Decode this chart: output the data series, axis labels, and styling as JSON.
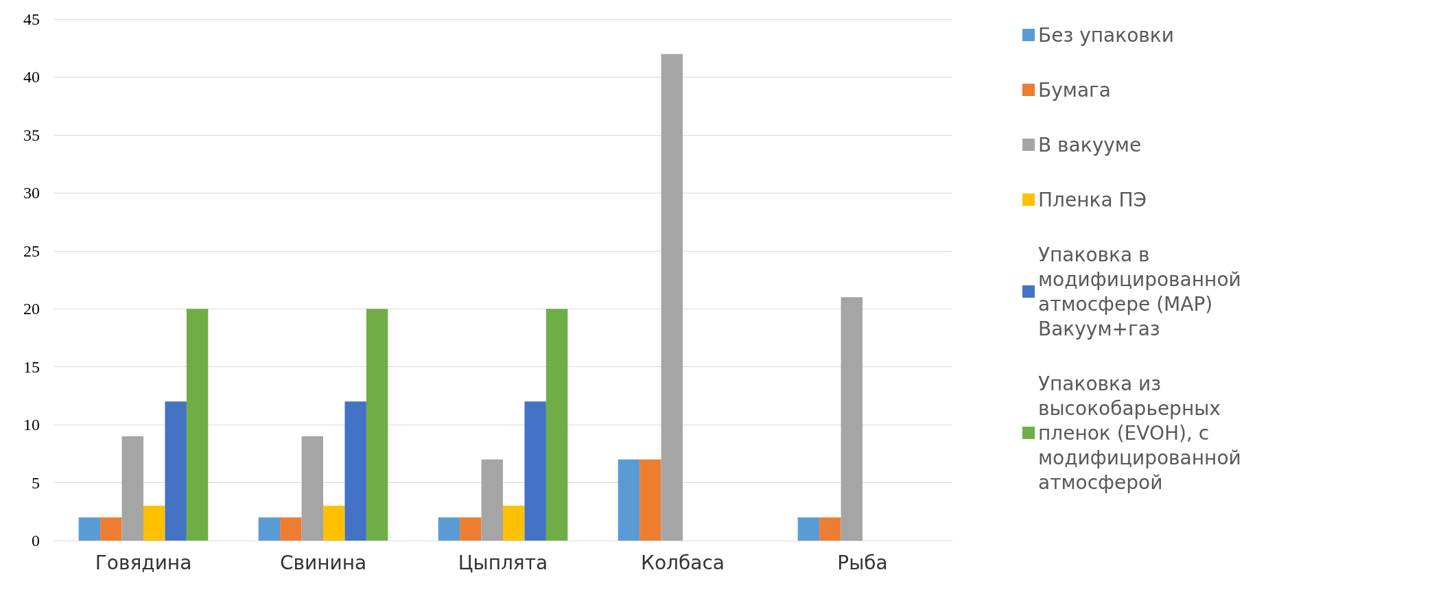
{
  "chart_data": {
    "type": "bar",
    "categories": [
      "Говядина",
      "Свинина",
      "Цыплята",
      "Колбаса",
      "Рыба"
    ],
    "series": [
      {
        "name": "Без упаковки",
        "color": "#5b9bd5",
        "values": [
          2,
          2,
          2,
          7,
          2
        ]
      },
      {
        "name": "Бумага",
        "color": "#ed7d31",
        "values": [
          2,
          2,
          2,
          7,
          2
        ]
      },
      {
        "name": "В вакууме",
        "color": "#a5a5a5",
        "values": [
          9,
          9,
          7,
          42,
          21
        ]
      },
      {
        "name": "Пленка ПЭ",
        "color": "#ffc000",
        "values": [
          3,
          3,
          3,
          null,
          null
        ]
      },
      {
        "name": "Упаковка в модифицированной атмосфере (МАР) Вакуум+газ",
        "color": "#4472c4",
        "values": [
          12,
          12,
          12,
          null,
          null
        ]
      },
      {
        "name": "Упаковка из высокобарьерных пленок (EVOH), с модифицированной атмосферой",
        "color": "#70ad47",
        "values": [
          20,
          20,
          20,
          null,
          null
        ]
      }
    ],
    "ylim": [
      0,
      45
    ],
    "yticks": [
      0,
      5,
      10,
      15,
      20,
      25,
      30,
      35,
      40,
      45
    ],
    "grid": "y",
    "legend": "right"
  }
}
